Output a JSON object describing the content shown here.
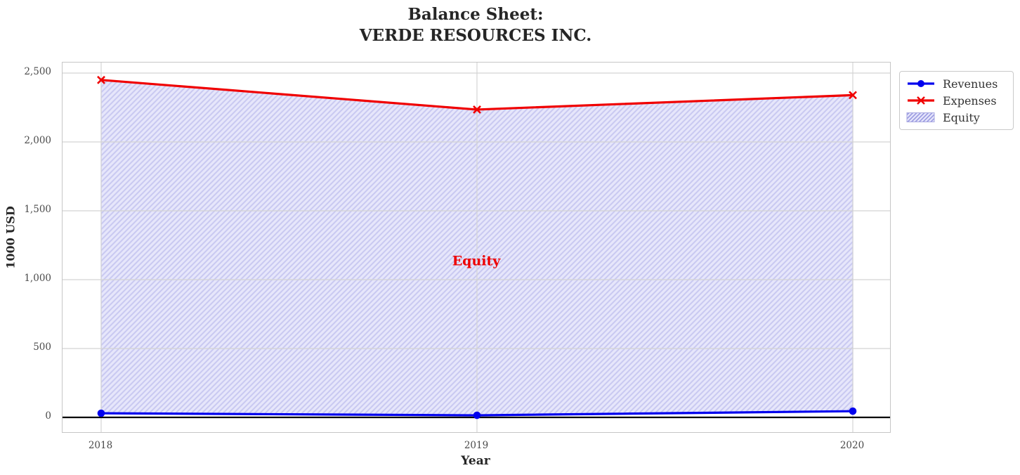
{
  "title": {
    "line1": "Balance Sheet:",
    "line2": "VERDE RESOURCES INC."
  },
  "chart_data": {
    "type": "line",
    "title": "Balance Sheet: VERDE RESOURCES INC.",
    "x": [
      2018,
      2019,
      2020
    ],
    "xtick_labels": [
      "2018",
      "2019",
      "2020"
    ],
    "series": [
      {
        "name": "Revenues",
        "values": [
          30,
          15,
          45
        ],
        "color": "#0000ee",
        "marker": "circle"
      },
      {
        "name": "Expenses",
        "values": [
          2450,
          2235,
          2340
        ],
        "color": "#f00000",
        "marker": "x"
      }
    ],
    "area": {
      "name": "Equity",
      "between": [
        "Expenses",
        "Revenues"
      ],
      "facecolor": "#e6e6fb",
      "hatch": "/",
      "hatch_color": "#c9c9f1",
      "edge_color": "#b4b4ec",
      "legend_hatch_color": "#9a9ae0",
      "legend_edge_color": "#a9a9e2"
    },
    "annotation": {
      "text": "Equity",
      "x": 2019,
      "y": 1130,
      "color": "#ee0000"
    },
    "xlabel": "Year",
    "ylabel": "1000 USD",
    "yticks": [
      0,
      500,
      1000,
      1500,
      2000,
      2500
    ],
    "ytick_labels": [
      "0",
      "500",
      "1,000",
      "1,500",
      "2,000",
      "2,500"
    ],
    "ylim": [
      -110,
      2575
    ],
    "grid": true,
    "grid_color": "#d4d4d4",
    "zero_line_color": "#000000",
    "legend_position": "outside upper right",
    "legend_entries": [
      "Revenues",
      "Expenses",
      "Equity"
    ]
  }
}
